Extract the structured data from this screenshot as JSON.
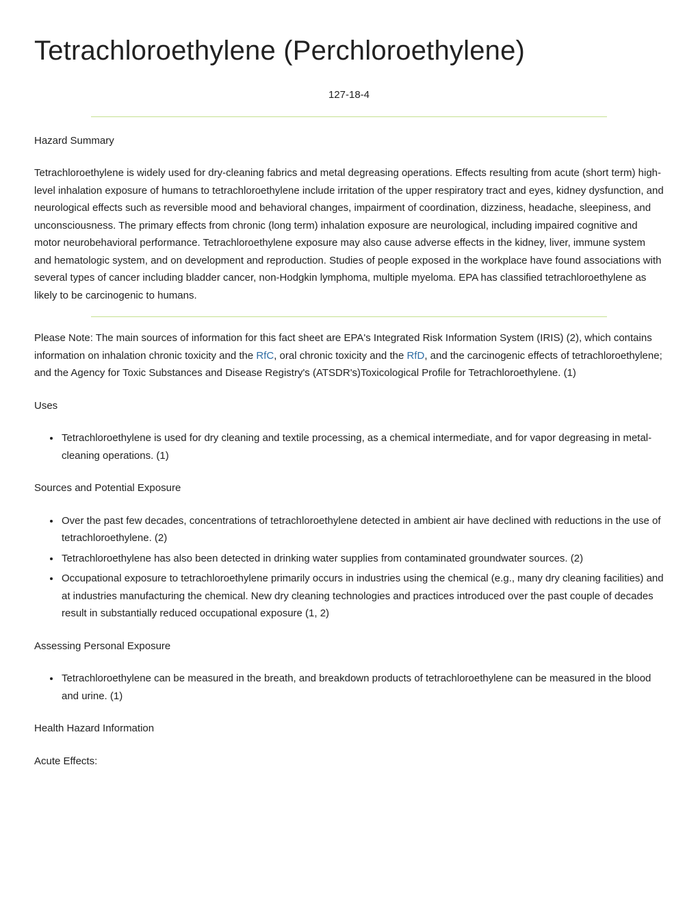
{
  "title": "Tetrachloroethylene (Perchloroethylene)",
  "cas_number": "127-18-4",
  "hr_color": "#c5e08f",
  "link_color": "#2e6da4",
  "sections": {
    "hazard_summary_heading": "Hazard Summary",
    "hazard_summary_body": "Tetrachloroethylene is widely used for dry-cleaning fabrics and metal degreasing operations. Effects resulting from acute (short term) high-level inhalation exposure of humans to tetrachloroethylene include irritation of the upper respiratory tract and eyes, kidney dysfunction, and neurological effects such as reversible mood and behavioral changes, impairment of coordination, dizziness, headache, sleepiness, and unconsciousness.  The primary effects from chronic (long term) inhalation exposure are neurological, including impaired cognitive and motor neurobehavioral performance.  Tetrachloroethylene exposure may also cause adverse effects in the kidney, liver, immune system and hematologic system, and on development and reproduction. Studies of people exposed in the workplace have found associations with several types of cancer including bladder cancer, non-Hodgkin lymphoma, multiple myeloma.  EPA has classified tetrachloroethylene as likely to be carcinogenic to humans.",
    "note_pre": "Please Note: The main sources of information for this fact sheet are EPA's Integrated Risk Information System (IRIS) (2), which contains information on inhalation chronic toxicity and the ",
    "note_link1": "RfC",
    "note_mid": ", oral chronic toxicity and the ",
    "note_link2": "RfD",
    "note_post": ", and the carcinogenic effects of tetrachloroethylene; and the Agency for Toxic Substances and Disease Registry's (ATSDR's)Toxicological Profile for Tetrachloroethylene. (1)",
    "uses_heading": "Uses",
    "uses_items": [
      "Tetrachloroethylene is used for dry cleaning and textile processing, as a chemical intermediate, and for vapor degreasing in metal-cleaning operations. (1)"
    ],
    "sources_heading": "Sources and Potential Exposure",
    "sources_items": [
      "Over the past few decades, concentrations of tetrachloroethylene detected in ambient air have declined with reductions in the use of tetrachloroethylene. (2)",
      "Tetrachloroethylene has also been detected in drinking water supplies from contaminated groundwater sources. (2)",
      "Occupational exposure to tetrachloroethylene primarily occurs in industries using the chemical (e.g., many dry cleaning facilities) and at industries manufacturing the chemical. New dry cleaning technologies and practices introduced over the past couple of decades result in substantially reduced occupational exposure (1, 2)"
    ],
    "assessing_heading": "Assessing Personal Exposure",
    "assessing_items": [
      "Tetrachloroethylene can be measured in the breath, and breakdown products of tetrachloroethylene can be measured in the blood and urine. (1)"
    ],
    "health_heading": "Health Hazard Information",
    "acute_heading": "Acute Effects:"
  }
}
